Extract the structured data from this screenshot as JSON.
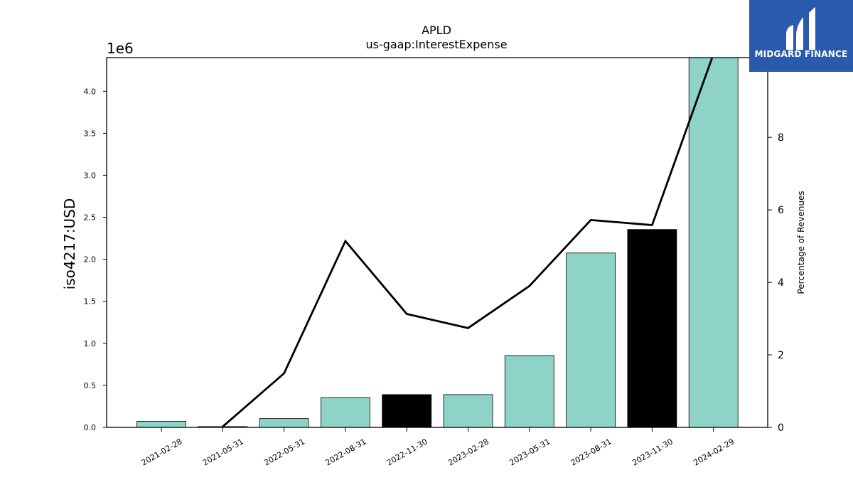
{
  "chart_data": {
    "type": "bar",
    "title": "APLD",
    "subtitle": "us-gaap:InterestExpense",
    "ylabel": "iso4217:USD",
    "y_offset_label": "1e6",
    "y2label": "Percentage of Revenues",
    "categories": [
      "2021-02-28",
      "2021-05-31",
      "2022-05-31",
      "2022-08-31",
      "2022-11-30",
      "2023-02-28",
      "2023-05-31",
      "2023-08-31",
      "2023-11-30",
      "2024-02-29"
    ],
    "series": [
      {
        "type": "bar",
        "axis": "left",
        "values": [
          72000,
          10000,
          105000,
          355000,
          390000,
          390000,
          855000,
          2075000,
          2355000,
          4400000
        ],
        "colors": [
          "#8dd3c7",
          "#8dd3c7",
          "#8dd3c7",
          "#8dd3c7",
          "#000000",
          "#8dd3c7",
          "#8dd3c7",
          "#8dd3c7",
          "#000000",
          "#8dd3c7"
        ]
      },
      {
        "type": "line",
        "axis": "right",
        "values": [
          null,
          0.02,
          1.49,
          5.14,
          3.13,
          2.74,
          3.9,
          5.72,
          5.58,
          10.3
        ],
        "color": "#000000"
      }
    ],
    "ylim": [
      0,
      4400000
    ],
    "y2lim": [
      0,
      10.2
    ],
    "yticks": [
      0,
      500000,
      1000000,
      1500000,
      2000000,
      2500000,
      3000000,
      3500000,
      4000000
    ],
    "ytick_labels": [
      "0.0",
      "0.5",
      "1.0",
      "1.5",
      "2.0",
      "2.5",
      "3.0",
      "3.5",
      "4.0"
    ],
    "y2ticks": [
      0,
      2,
      4,
      6,
      8
    ],
    "y2tick_labels": [
      "0",
      "2",
      "4",
      "6",
      "8"
    ],
    "grid": false,
    "legend": "none"
  },
  "logo": {
    "name": "midgard-finance-logo-icon",
    "text": "MIDGARD FINANCE",
    "color": "#2a5aad"
  }
}
